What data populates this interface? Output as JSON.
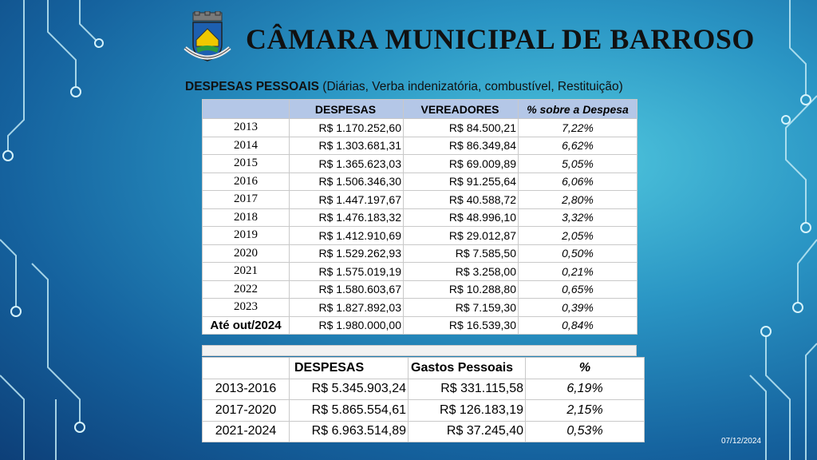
{
  "header": {
    "title": "CÂMARA MUNICIPAL DE BARROSO",
    "subtitle_bold": "DESPESAS PESSOAIS",
    "subtitle_rest": " (Diárias, Verba indenizatória, combustível, Restituição)"
  },
  "table1": {
    "headers": [
      "",
      "DESPESAS",
      "VEREADORES",
      "% sobre a Despesa"
    ],
    "rows": [
      [
        "2013",
        "R$ 1.170.252,60",
        "R$ 84.500,21",
        "7,22%"
      ],
      [
        "2014",
        "R$ 1.303.681,31",
        "R$ 86.349,84",
        "6,62%"
      ],
      [
        "2015",
        "R$ 1.365.623,03",
        "R$ 69.009,89",
        "5,05%"
      ],
      [
        "2016",
        "R$ 1.506.346,30",
        "R$ 91.255,64",
        "6,06%"
      ],
      [
        "2017",
        "R$ 1.447.197,67",
        "R$ 40.588,72",
        "2,80%"
      ],
      [
        "2018",
        "R$ 1.476.183,32",
        "R$ 48.996,10",
        "3,32%"
      ],
      [
        "2019",
        "R$ 1.412.910,69",
        "R$ 29.012,87",
        "2,05%"
      ],
      [
        "2020",
        "R$ 1.529.262,93",
        "R$ 7.585,50",
        "0,50%"
      ],
      [
        "2021",
        "R$ 1.575.019,19",
        "R$ 3.258,00",
        "0,21%"
      ],
      [
        "2022",
        "R$ 1.580.603,67",
        "R$ 10.288,80",
        "0,65%"
      ],
      [
        "2023",
        "R$ 1.827.892,03",
        "R$ 7.159,30",
        "0,39%"
      ],
      [
        "Até out/2024",
        "R$ 1.980.000,00",
        "R$ 16.539,30",
        "0,84%"
      ]
    ]
  },
  "table2": {
    "headers": [
      "",
      "DESPESAS",
      "Gastos Pessoais",
      "%"
    ],
    "rows": [
      [
        "2013-2016",
        "R$ 5.345.903,24",
        "R$ 331.115,58",
        "6,19%"
      ],
      [
        "2017-2020",
        "R$ 5.865.554,61",
        "R$ 126.183,19",
        "2,15%"
      ],
      [
        "2021-2024",
        "R$ 6.963.514,89",
        "R$ 37.245,40",
        "0,53%"
      ]
    ]
  },
  "footer": {
    "date": "07/12/2024"
  },
  "colors": {
    "header_fill": "#b4c7e7",
    "background_light": "#4fc6dd",
    "background_dark": "#0d3f78"
  },
  "icons": {
    "crest": "municipal-crest-icon"
  }
}
